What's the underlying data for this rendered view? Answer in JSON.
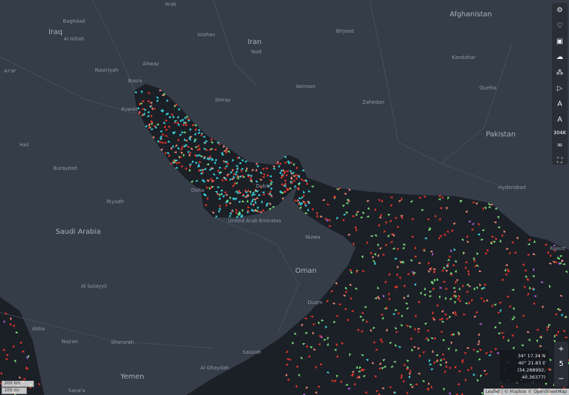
{
  "map": {
    "places": [
      "Arak",
      "Baghdad",
      "Al Hillah",
      "Islahan",
      "Yazd",
      "Birjand",
      "Kandahar",
      "Quetta",
      "Ahwaz",
      "Nasiriyah",
      "Basra",
      "Kuwait",
      "Shiraz",
      "Kerman",
      "Zahedan",
      "Hyderabad",
      "Ar'ar",
      "Hail",
      "Buraydah",
      "Riyadh",
      "Doha",
      "Dubai",
      "Nizwa",
      "Duqm",
      "Al Sulayyil",
      "Abha",
      "Najran",
      "Sharurah",
      "Sana'a",
      "Al Ghaydah",
      "Salalah",
      "Rajkot"
    ],
    "countries": [
      "Iraq",
      "Iran",
      "Afghanistan",
      "Pakistan",
      "Saudi Arabia",
      "United Arab Emirates",
      "Oman",
      "Yemen"
    ]
  },
  "toolbar": {
    "count": "304K"
  },
  "coordinates": {
    "lat": "34° 17.34 N",
    "lon": "40° 21.83 E",
    "decimal": "(34.288992, 40.36377)"
  },
  "zoom": {
    "plus": "+",
    "level": 5,
    "minus": "−"
  },
  "scale": {
    "metric": "200 km",
    "imperial": "100 mi"
  },
  "attribution": "Leaflet | © Mapbox © OpenStreetMap"
}
